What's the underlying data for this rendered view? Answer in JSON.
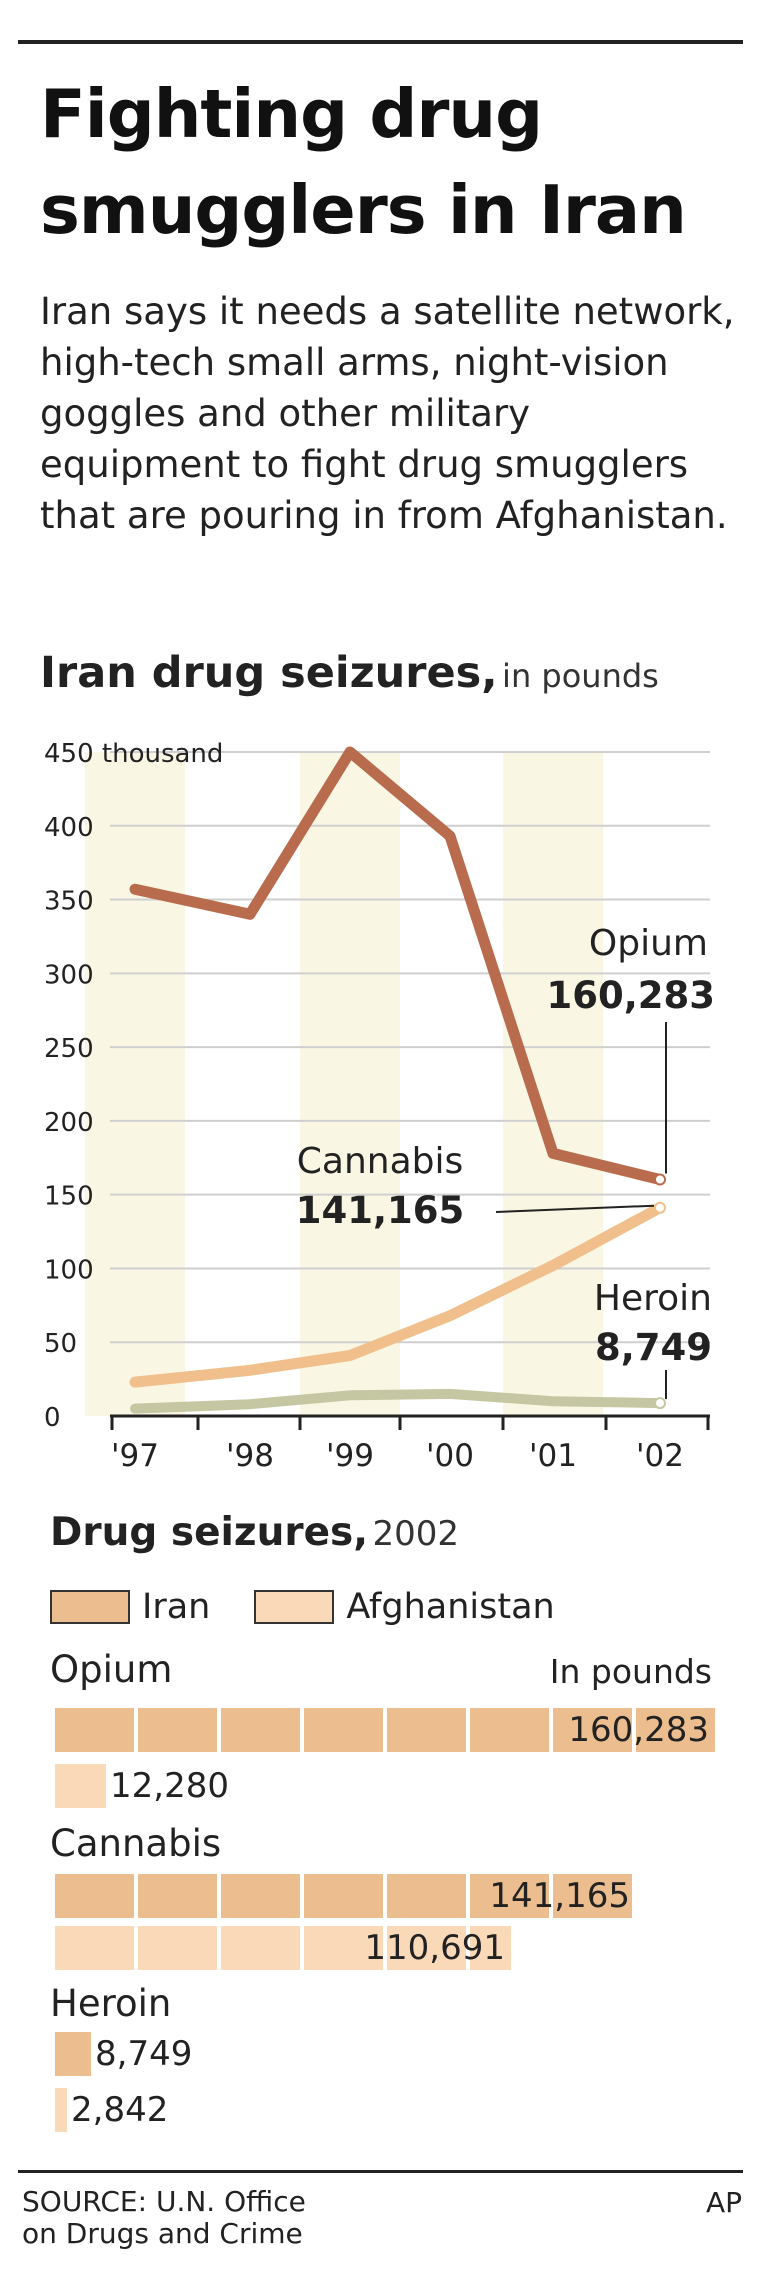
{
  "headline": "Fighting drug smugglers in Iran",
  "dek": "Iran says it needs a satellite network, high-tech small arms, night-vision goggles and other military equipment to fight drug smugglers that are pouring in from Afghanistan.",
  "chart_data": [
    {
      "type": "line",
      "title": "Iran drug seizures,",
      "subtitle": "in pounds",
      "x": [
        "'97",
        "'98",
        "'99",
        "'00",
        "'01",
        "'02"
      ],
      "ylim": [
        0,
        450
      ],
      "yticks": [
        "0",
        "50",
        "100",
        "150",
        "200",
        "250",
        "300",
        "350",
        "400",
        "450 thousand"
      ],
      "grid": true,
      "series": [
        {
          "name": "Opium",
          "values": [
            357,
            340,
            450,
            393,
            178,
            160.283
          ],
          "color": "#b96c4d",
          "label_value": "160,283"
        },
        {
          "name": "Cannabis",
          "values": [
            23,
            31,
            41,
            68,
            102,
            141.165
          ],
          "color": "#f0bf8c",
          "label_value": "141,165"
        },
        {
          "name": "Heroin",
          "values": [
            5,
            8,
            14,
            15,
            10,
            8.749
          ],
          "color": "#c5c7a3",
          "label_value": "8,749"
        }
      ],
      "shading_color": "#faf6e4"
    },
    {
      "type": "bar",
      "title": "Drug seizures,",
      "subtitle": "2002",
      "unit_label": "In pounds",
      "legend": [
        {
          "name": "Iran",
          "color": "#ebbd8f"
        },
        {
          "name": "Afghanistan",
          "color": "#fad9b9"
        }
      ],
      "categories": [
        "Opium",
        "Cannabis",
        "Heroin"
      ],
      "series": [
        {
          "name": "Iran",
          "values": [
            160283,
            141165,
            8749
          ],
          "labels": [
            "160,283",
            "141,165",
            "8,749"
          ]
        },
        {
          "name": "Afghanistan",
          "values": [
            12280,
            110691,
            2842
          ],
          "labels": [
            "12,280",
            "110,691",
            "2,842"
          ]
        }
      ]
    }
  ],
  "footer": {
    "source_line1": "SOURCE: U.N. Office",
    "source_line2": "on Drugs and Crime",
    "credit": "AP"
  }
}
